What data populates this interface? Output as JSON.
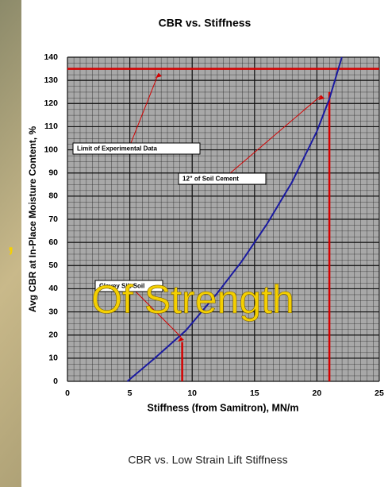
{
  "chart_data": {
    "type": "line",
    "title": "CBR vs. Stiffness",
    "x_label": "Stiffness (from Samitron), MN/m",
    "y_label": "Avg CBR at In-Place Moisture Content, %",
    "caption": "CBR vs. Low Strain Lift Stiffness",
    "overlay_text": "Of Strength",
    "overlay_mark": ",",
    "x": [
      4.8,
      7,
      9.5,
      12,
      14,
      16,
      18,
      20,
      21,
      22
    ],
    "series": [
      {
        "color": "#1a1aa0",
        "values": [
          0,
          10,
          22,
          38,
          52,
          68,
          86,
          108,
          122,
          140
        ]
      }
    ],
    "reference_lines": [
      {
        "axis": "y",
        "value": 135
      },
      {
        "axis": "x",
        "value": 21,
        "to": 125
      },
      {
        "axis": "x",
        "value": 9.2,
        "to": 17
      }
    ],
    "reference_color": "#d40000",
    "annotations": [
      "Limit of Experimental Data",
      "12\" of Soil Cement",
      "Clayey Silt Soil"
    ],
    "xlim": [
      0,
      25
    ],
    "xticks": [
      0,
      5,
      10,
      15,
      20,
      25
    ],
    "ylim": [
      0,
      140
    ],
    "yticks": [
      0,
      10,
      20,
      30,
      40,
      50,
      60,
      70,
      80,
      90,
      100,
      110,
      120,
      130,
      140
    ],
    "grid": true
  }
}
